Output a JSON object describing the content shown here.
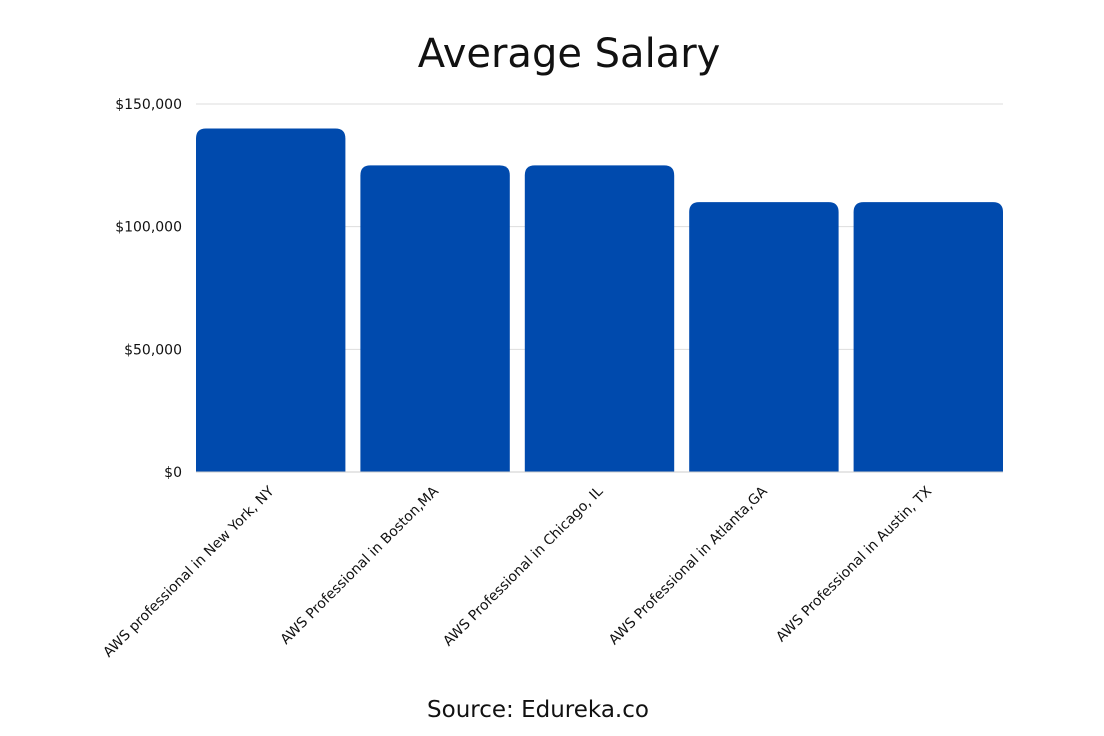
{
  "colors": {
    "bar": "#004aad",
    "grid": "#dddddd",
    "axis": "#cccccc",
    "text": "#111111",
    "background": "#ffffff"
  },
  "source_text": "Source: Edureka.co",
  "chart_data": {
    "type": "bar",
    "title": "Average Salary",
    "xlabel": "",
    "ylabel": "",
    "categories": [
      "AWS professional in New York, NY",
      "AWS Professional in Boston,MA",
      "AWS Professional in Chicago, IL",
      "AWS Professional in Atlanta,GA",
      "AWS Professional in Austin, TX"
    ],
    "values": [
      140000,
      125000,
      125000,
      110000,
      110000
    ],
    "ylim": [
      0,
      150000
    ],
    "yticks": [
      0,
      50000,
      100000,
      150000
    ],
    "ytick_labels": [
      "$0",
      "$50,000",
      "$100,000",
      "$150,000"
    ],
    "grid": true,
    "legend": "none"
  }
}
